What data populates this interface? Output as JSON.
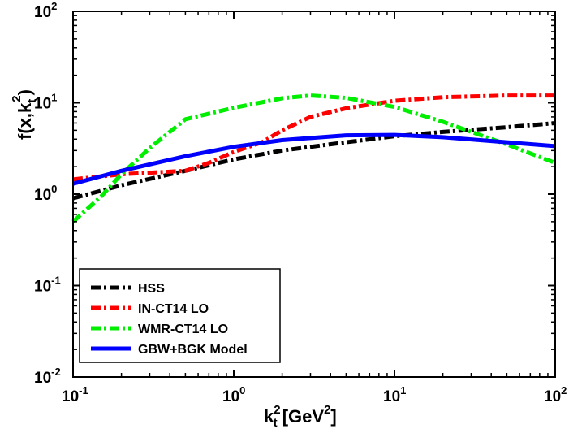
{
  "chart_data": {
    "type": "line",
    "xscale": "log",
    "yscale": "log",
    "xlim": [
      0.1,
      100
    ],
    "ylim": [
      0.01,
      100
    ],
    "xlabel": {
      "base": "k",
      "sub": "t",
      "sup": "2",
      "rest_open": " [GeV",
      "rest_sup": "2",
      "rest_close": "]"
    },
    "ylabel": {
      "text": "f(x,k",
      "sub": "t",
      "sup": "2",
      "close": ")"
    },
    "xticks": [
      {
        "value": 0.1,
        "base": "10",
        "exp": "-1"
      },
      {
        "value": 1,
        "base": "10",
        "exp": "0"
      },
      {
        "value": 10,
        "base": "10",
        "exp": "1"
      },
      {
        "value": 100,
        "base": "10",
        "exp": "2"
      }
    ],
    "yticks": [
      {
        "value": 0.01,
        "base": "10",
        "exp": "-2"
      },
      {
        "value": 0.1,
        "base": "10",
        "exp": "-1"
      },
      {
        "value": 1,
        "base": "10",
        "exp": "0"
      },
      {
        "value": 10,
        "base": "10",
        "exp": "1"
      },
      {
        "value": 100,
        "base": "10",
        "exp": "2"
      }
    ],
    "legend_position": "bottom-left",
    "series": [
      {
        "name": "HSS",
        "color": "#000000",
        "style": "dashdot",
        "x": [
          0.1,
          0.2,
          0.5,
          1,
          2,
          5,
          10,
          20,
          50,
          100
        ],
        "y": [
          0.9,
          1.25,
          1.8,
          2.4,
          3.0,
          3.7,
          4.3,
          4.8,
          5.4,
          6.0
        ]
      },
      {
        "name": "IN-CT14 LO",
        "color": "#ff0000",
        "style": "dashdot",
        "x": [
          0.1,
          0.2,
          0.5,
          0.7,
          1,
          1.5,
          2,
          3,
          5,
          10,
          20,
          50,
          100
        ],
        "y": [
          1.45,
          1.65,
          1.8,
          2.2,
          2.9,
          3.7,
          5.0,
          7.0,
          8.7,
          10.5,
          11.5,
          12.0,
          12.0
        ]
      },
      {
        "name": "WMR-CT14 LO",
        "color": "#00ee00",
        "style": "dashdot",
        "x": [
          0.1,
          0.15,
          0.2,
          0.3,
          0.5,
          1,
          2,
          3,
          5,
          10,
          20,
          50,
          100
        ],
        "y": [
          0.5,
          0.95,
          1.65,
          3.2,
          6.6,
          8.8,
          11.2,
          12.0,
          11.3,
          9.0,
          6.2,
          3.5,
          2.2
        ]
      },
      {
        "name": "GBW+BGK Model",
        "color": "#0000ff",
        "style": "solid",
        "x": [
          0.1,
          0.2,
          0.5,
          1,
          2,
          5,
          10,
          20,
          50,
          100
        ],
        "y": [
          1.3,
          1.8,
          2.6,
          3.3,
          3.9,
          4.4,
          4.45,
          4.2,
          3.7,
          3.35
        ]
      }
    ]
  }
}
